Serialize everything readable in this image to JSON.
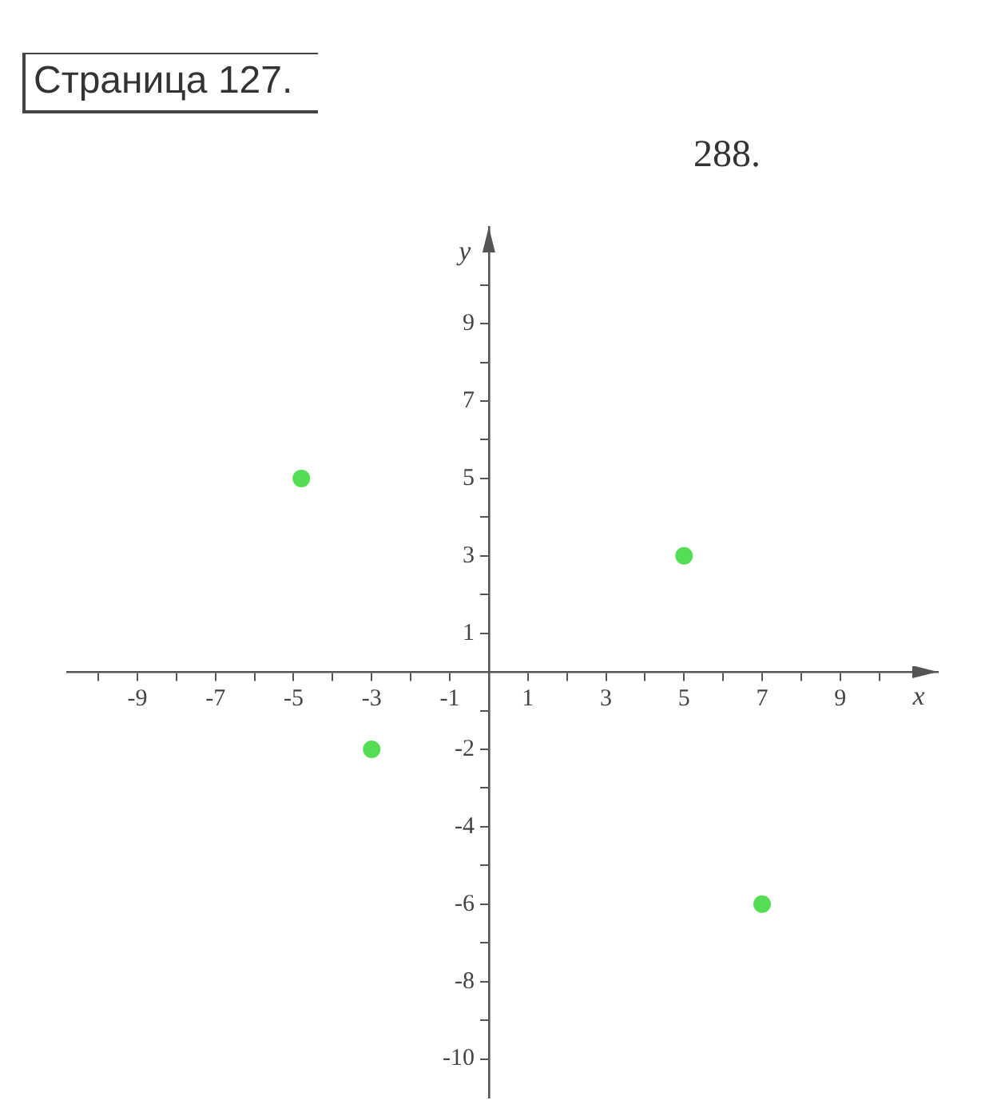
{
  "chart_data": {
    "type": "scatter",
    "title": "Страница 127.",
    "subtitle": "288.",
    "xlabel": "x",
    "ylabel": "y",
    "x": [
      -4.8,
      -3,
      5,
      7
    ],
    "values": [
      5,
      -2,
      3,
      -6
    ],
    "color": "#55dd55",
    "marker": "circle",
    "xlim": [
      -10.8,
      11.5
    ],
    "ylim": [
      -11,
      11.5
    ],
    "xticks": [
      {
        "value": -10,
        "label": null
      },
      -9,
      {
        "value": -8,
        "label": null
      },
      -7,
      {
        "value": -6,
        "label": null
      },
      -5,
      {
        "value": -4,
        "label": null
      },
      -3,
      {
        "value": -2,
        "label": null
      },
      -1,
      1,
      {
        "value": 2,
        "label": null
      },
      3,
      {
        "value": 4,
        "label": null
      },
      5,
      {
        "value": 6,
        "label": null
      },
      7,
      {
        "value": 8,
        "label": null
      },
      9,
      {
        "value": 10,
        "label": null
      }
    ],
    "yticks": [
      -10,
      {
        "value": -9,
        "label": null
      },
      -8,
      {
        "value": -7,
        "label": null
      },
      -6,
      {
        "value": -5,
        "label": null
      },
      -4,
      {
        "value": -3,
        "label": null
      },
      -2,
      {
        "value": -1,
        "label": null
      },
      1,
      {
        "value": 2,
        "label": null
      },
      3,
      {
        "value": 4,
        "label": null
      },
      5,
      {
        "value": 6,
        "label": null
      },
      7,
      {
        "value": 8,
        "label": null
      },
      9,
      {
        "value": 10,
        "label": null
      }
    ]
  }
}
